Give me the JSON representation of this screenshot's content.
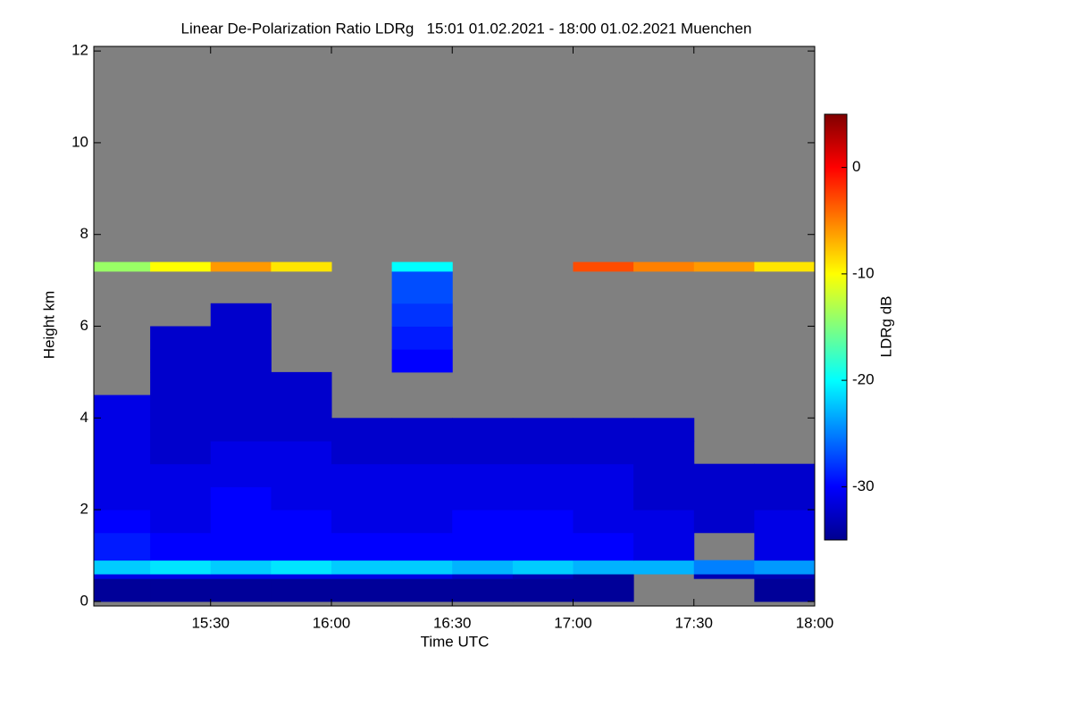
{
  "chart_data": {
    "type": "heatmap",
    "title": "Linear De-Polarization Ratio LDRg   15:01 01.02.2021 - 18:00 01.02.2021 Muenchen",
    "xlabel": "Time UTC",
    "ylabel": "Height km",
    "colorbar_label": "LDRg dB",
    "xlim": [
      1,
      180
    ],
    "xticks": [
      {
        "value": 30,
        "label": "15:30"
      },
      {
        "value": 60,
        "label": "16:00"
      },
      {
        "value": 90,
        "label": "16:30"
      },
      {
        "value": 120,
        "label": "17:00"
      },
      {
        "value": 150,
        "label": "17:30"
      },
      {
        "value": 180,
        "label": "18:00"
      }
    ],
    "ylim": [
      -0.1,
      12.1
    ],
    "yticks": [
      0,
      2,
      4,
      6,
      8,
      10,
      12
    ],
    "zlim": [
      -35,
      5
    ],
    "zticks": [
      -30,
      -20,
      -10,
      0
    ],
    "colormap": "jet",
    "missing_color": "#808080",
    "x_edges": [
      1,
      15,
      30,
      45,
      60,
      75,
      90,
      105,
      120,
      135,
      150,
      165,
      180
    ],
    "y_edges": [
      0,
      0.5,
      0.6,
      0.9,
      1.5,
      2,
      2.5,
      3,
      3.5,
      4,
      4.5,
      5,
      5.5,
      6,
      6.5,
      7.2,
      7.4
    ],
    "z": [
      [
        -34,
        -34,
        -34,
        -34,
        -34,
        -34,
        -34,
        -34,
        -34,
        null,
        null,
        -34
      ],
      [
        -31,
        -31,
        -31,
        -31,
        -31,
        -31,
        -32,
        -33,
        -34,
        null,
        -33,
        -33
      ],
      [
        -22,
        -21,
        -22,
        -21,
        -22,
        -22,
        -23,
        -22,
        -23,
        -23,
        -25,
        -24
      ],
      [
        -29,
        -30,
        -30,
        -30,
        -30,
        -30,
        -30,
        -30,
        -30,
        -31,
        null,
        -31
      ],
      [
        -30,
        -31,
        -30,
        -30,
        -31,
        -31,
        -30,
        -30,
        -31,
        -31,
        -32,
        -31
      ],
      [
        -31,
        -31,
        -30,
        -31,
        -31,
        -31,
        -31,
        -31,
        -31,
        -32,
        -32,
        -32
      ],
      [
        -31,
        -31,
        -31,
        -31,
        -31,
        -31,
        -31,
        -31,
        -31,
        -32,
        -32,
        -32
      ],
      [
        -31,
        -32,
        -31,
        -31,
        -32,
        -32,
        -32,
        -32,
        -32,
        -32,
        null,
        null
      ],
      [
        -31,
        -32,
        -32,
        -32,
        -32,
        -32,
        -32,
        -32,
        -32,
        -32,
        null,
        null
      ],
      [
        -31,
        -32,
        -32,
        -32,
        null,
        null,
        null,
        null,
        null,
        null,
        null,
        null
      ],
      [
        null,
        -32,
        -32,
        -32,
        null,
        null,
        null,
        null,
        null,
        null,
        null,
        null
      ],
      [
        null,
        -32,
        -32,
        null,
        null,
        -30,
        null,
        null,
        null,
        null,
        null,
        null
      ],
      [
        null,
        -32,
        -32,
        null,
        null,
        -29,
        null,
        null,
        null,
        null,
        null,
        null
      ],
      [
        null,
        null,
        -32,
        null,
        null,
        -28,
        null,
        null,
        null,
        null,
        null,
        null
      ],
      [
        null,
        null,
        null,
        null,
        null,
        -27,
        null,
        null,
        null,
        null,
        null,
        null
      ],
      [
        -14,
        -10,
        -6,
        -9,
        null,
        -20,
        null,
        null,
        -3,
        -5,
        -6,
        -9
      ]
    ]
  }
}
